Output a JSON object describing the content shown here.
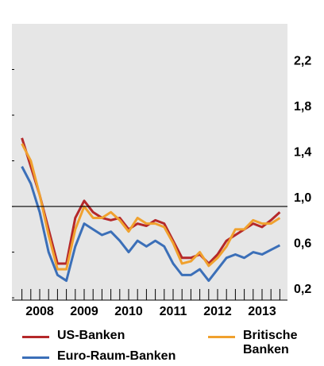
{
  "chart_data": {
    "type": "line",
    "categories": [
      null,
      null,
      "2008",
      null,
      null,
      null,
      null,
      "2009",
      null,
      null,
      null,
      null,
      "2010",
      null,
      null,
      null,
      null,
      "2011",
      null,
      null,
      null,
      null,
      "2012",
      null,
      null,
      null,
      null,
      "2013",
      null,
      null
    ],
    "series": [
      {
        "name": "US-Banken",
        "color": "#b5282a",
        "values": [
          1.6,
          1.35,
          1.1,
          0.8,
          0.5,
          0.5,
          0.9,
          1.05,
          0.95,
          0.9,
          0.88,
          0.9,
          0.8,
          0.85,
          0.83,
          0.88,
          0.85,
          0.7,
          0.55,
          0.55,
          0.58,
          0.5,
          0.58,
          0.7,
          0.75,
          0.8,
          0.85,
          0.82,
          0.88,
          0.95
        ]
      },
      {
        "name": "Britische Banken",
        "color": "#f0a12e",
        "values": [
          1.55,
          1.4,
          1.1,
          0.75,
          0.45,
          0.45,
          0.8,
          1.0,
          0.9,
          0.9,
          0.95,
          0.88,
          0.78,
          0.9,
          0.85,
          0.85,
          0.82,
          0.68,
          0.5,
          0.52,
          0.6,
          0.48,
          0.55,
          0.65,
          0.8,
          0.8,
          0.88,
          0.85,
          0.85,
          0.9
        ]
      },
      {
        "name": "Euro-Raum-Banken",
        "color": "#3b6fb8",
        "values": [
          1.35,
          1.2,
          0.95,
          0.6,
          0.4,
          0.35,
          0.65,
          0.85,
          0.8,
          0.75,
          0.78,
          0.7,
          0.6,
          0.7,
          0.65,
          0.7,
          0.65,
          0.5,
          0.4,
          0.4,
          0.45,
          0.35,
          0.45,
          0.55,
          0.58,
          0.55,
          0.6,
          0.58,
          0.62,
          0.66
        ]
      }
    ],
    "ylim": [
      0.18,
      2.6
    ],
    "yticks": [
      {
        "value": 0.2,
        "label": "0,2"
      },
      {
        "value": 0.6,
        "label": "0,6"
      },
      {
        "value": 1.0,
        "label": "1,0"
      },
      {
        "value": 1.4,
        "label": "1,4"
      },
      {
        "value": 1.8,
        "label": "1,8"
      },
      {
        "value": 2.2,
        "label": "2,2"
      }
    ],
    "hline": 1,
    "grid": false
  }
}
